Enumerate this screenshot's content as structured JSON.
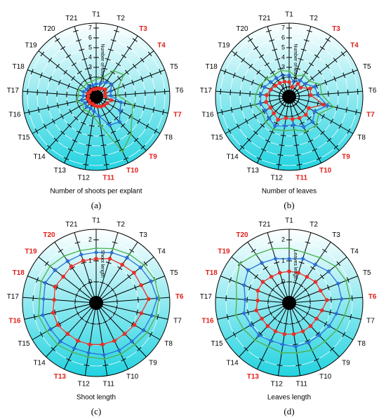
{
  "chart_data": [
    {
      "type": "radar",
      "panel_label": "(a)",
      "xlabel": "Number of shoots per explant",
      "rlabel": "Number of shoots",
      "categories": [
        "T1",
        "T2",
        "T3",
        "T4",
        "T5",
        "T6",
        "T7",
        "T8",
        "T9",
        "T10",
        "T11",
        "T12",
        "T13",
        "T14",
        "T15",
        "T16",
        "T17",
        "T18",
        "T19",
        "T20",
        "T21"
      ],
      "category_colors": [
        "#000",
        "#000",
        "#e0201b",
        "#e0201b",
        "#000",
        "#000",
        "#e0201b",
        "#000",
        "#e0201b",
        "#e0201b",
        "#e0201b",
        "#000",
        "#000",
        "#000",
        "#000",
        "#000",
        "#000",
        "#000",
        "#000",
        "#000",
        "#000"
      ],
      "rlim": [
        0,
        7.5
      ],
      "rticks": [
        1,
        2,
        3,
        4,
        5,
        6,
        7
      ],
      "grid": true,
      "series": [
        {
          "color": "#e8302a",
          "marker": "circle",
          "values": [
            0.8,
            0.9,
            1.0,
            1.2,
            1.0,
            0.9,
            1.6,
            1.3,
            1.2,
            1.1,
            1.0,
            0.9,
            0.8,
            0.9,
            0.8,
            0.9,
            0.8,
            0.9,
            0.8,
            0.9,
            0.8
          ]
        },
        {
          "color": "#2a6fd6",
          "marker": "diamond",
          "values": [
            1.3,
            1.4,
            1.8,
            2.0,
            1.6,
            1.5,
            2.6,
            2.8,
            3.5,
            3.2,
            2.0,
            1.5,
            1.3,
            1.4,
            1.3,
            1.5,
            1.3,
            1.4,
            1.2,
            1.3,
            1.2
          ]
        },
        {
          "color": "#4caf50",
          "marker": "dot",
          "values": [
            1.8,
            2.0,
            3.2,
            3.6,
            2.4,
            2.2,
            3.8,
            4.2,
            5.2,
            6.2,
            3.0,
            2.0,
            1.7,
            1.8,
            1.6,
            2.0,
            1.8,
            1.9,
            1.6,
            1.7,
            1.6
          ]
        }
      ]
    },
    {
      "type": "radar",
      "panel_label": "(b)",
      "xlabel": "Number of leaves",
      "rlabel": "Number of leaves",
      "categories": [
        "T1",
        "T2",
        "T3",
        "T4",
        "T5",
        "T6",
        "T7",
        "T8",
        "T9",
        "T10",
        "T11",
        "T12",
        "T13",
        "T14",
        "T15",
        "T16",
        "T17",
        "T18",
        "T19",
        "T20",
        "T21"
      ],
      "category_colors": [
        "#000",
        "#000",
        "#e0201b",
        "#e0201b",
        "#000",
        "#000",
        "#e0201b",
        "#000",
        "#e0201b",
        "#e0201b",
        "#e0201b",
        "#000",
        "#000",
        "#000",
        "#000",
        "#000",
        "#000",
        "#000",
        "#000",
        "#000",
        "#000"
      ],
      "rlim": [
        0,
        7.5
      ],
      "rticks": [
        1,
        2,
        3,
        4,
        5,
        6,
        7
      ],
      "grid": true,
      "series": [
        {
          "color": "#e8302a",
          "marker": "circle",
          "values": [
            1.5,
            1.0,
            1.6,
            1.5,
            2.3,
            2.2,
            3.6,
            2.3,
            2.5,
            2.4,
            2.3,
            2.2,
            2.6,
            2.3,
            2.2,
            2.4,
            2.3,
            2.0,
            1.8,
            1.7,
            1.6
          ]
        },
        {
          "color": "#2a6fd6",
          "marker": "diamond",
          "values": [
            2.2,
            1.6,
            2.0,
            2.1,
            2.8,
            2.9,
            4.0,
            3.0,
            3.5,
            3.4,
            2.9,
            3.0,
            3.3,
            3.0,
            2.8,
            3.0,
            2.9,
            2.7,
            2.4,
            2.3,
            2.3
          ]
        },
        {
          "color": "#4caf50",
          "marker": "dot",
          "values": [
            2.6,
            2.2,
            2.7,
            2.6,
            3.4,
            3.3,
            4.6,
            3.5,
            4.0,
            3.9,
            3.4,
            3.5,
            3.7,
            3.5,
            3.2,
            3.6,
            3.4,
            3.2,
            2.9,
            2.7,
            2.8
          ]
        }
      ]
    },
    {
      "type": "radar",
      "panel_label": "(c)",
      "xlabel": "Shoot length",
      "rlabel": "Shoot length",
      "categories": [
        "T1",
        "T2",
        "T3",
        "T4",
        "T5",
        "T6",
        "T7",
        "T8",
        "T9",
        "T10",
        "T11",
        "T12",
        "T13",
        "T14",
        "T15",
        "T16",
        "T17",
        "T18",
        "T19",
        "T20",
        "T21"
      ],
      "category_colors": [
        "#000",
        "#000",
        "#000",
        "#000",
        "#000",
        "#e0201b",
        "#000",
        "#000",
        "#000",
        "#000",
        "#000",
        "#000",
        "#e0201b",
        "#000",
        "#000",
        "#e0201b",
        "#000",
        "#e0201b",
        "#e0201b",
        "#e0201b",
        "#000"
      ],
      "rlim": [
        -1,
        2.5
      ],
      "rticks": [
        0,
        1,
        2
      ],
      "grid": true,
      "series": [
        {
          "color": "#e8302a",
          "marker": "circle",
          "values": [
            1.1,
            1.2,
            1.2,
            1.3,
            1.3,
            1.5,
            1.2,
            1.1,
            1.0,
            1.0,
            1.0,
            1.0,
            1.0,
            1.0,
            1.1,
            1.1,
            1.0,
            1.1,
            1.0,
            1.1,
            1.1
          ]
        },
        {
          "color": "#2a6fd6",
          "marker": "diamond",
          "values": [
            1.4,
            1.5,
            1.6,
            1.7,
            1.8,
            1.9,
            1.7,
            1.6,
            1.5,
            1.5,
            1.5,
            1.4,
            1.4,
            1.5,
            1.5,
            1.6,
            1.5,
            1.6,
            1.5,
            1.4,
            1.4
          ]
        },
        {
          "color": "#4caf50",
          "marker": "dot",
          "values": [
            1.6,
            1.7,
            1.8,
            1.9,
            2.0,
            2.0,
            1.9,
            1.8,
            1.7,
            1.7,
            1.7,
            1.6,
            1.6,
            1.7,
            1.7,
            1.8,
            1.7,
            1.8,
            1.8,
            1.7,
            1.6
          ]
        }
      ]
    },
    {
      "type": "radar",
      "panel_label": "(d)",
      "xlabel": "Leaves length",
      "rlabel": "Leaves length",
      "categories": [
        "T1",
        "T2",
        "T3",
        "T4",
        "T5",
        "T6",
        "T7",
        "T8",
        "T9",
        "T10",
        "T11",
        "T12",
        "T13",
        "T14",
        "T15",
        "T16",
        "T17",
        "T18",
        "T19",
        "T20",
        "T21"
      ],
      "category_colors": [
        "#000",
        "#000",
        "#000",
        "#000",
        "#000",
        "#e0201b",
        "#000",
        "#000",
        "#000",
        "#000",
        "#000",
        "#000",
        "#e0201b",
        "#000",
        "#000",
        "#e0201b",
        "#000",
        "#e0201b",
        "#e0201b",
        "#e0201b",
        "#000"
      ],
      "rlim": [
        -1,
        2.5
      ],
      "rticks": [
        0,
        1,
        2
      ],
      "grid": true,
      "series": [
        {
          "color": "#e8302a",
          "marker": "circle",
          "values": [
            0.5,
            0.5,
            0.5,
            0.6,
            0.6,
            0.8,
            0.6,
            0.5,
            0.5,
            0.5,
            0.5,
            0.5,
            0.5,
            0.5,
            0.5,
            0.6,
            0.5,
            0.6,
            0.6,
            0.5,
            0.5
          ]
        },
        {
          "color": "#2a6fd6",
          "marker": "diamond",
          "values": [
            1.1,
            1.2,
            1.2,
            1.4,
            1.5,
            1.5,
            1.3,
            1.2,
            1.1,
            1.1,
            1.1,
            1.0,
            1.0,
            1.1,
            1.1,
            1.2,
            1.1,
            1.3,
            1.5,
            1.3,
            1.2
          ]
        },
        {
          "color": "#4caf50",
          "marker": "dot",
          "values": [
            1.6,
            1.5,
            1.6,
            1.8,
            1.9,
            1.9,
            1.7,
            1.6,
            1.5,
            1.5,
            1.4,
            1.4,
            1.3,
            1.4,
            1.5,
            1.6,
            1.5,
            1.7,
            2.0,
            1.8,
            1.7
          ]
        }
      ]
    }
  ]
}
